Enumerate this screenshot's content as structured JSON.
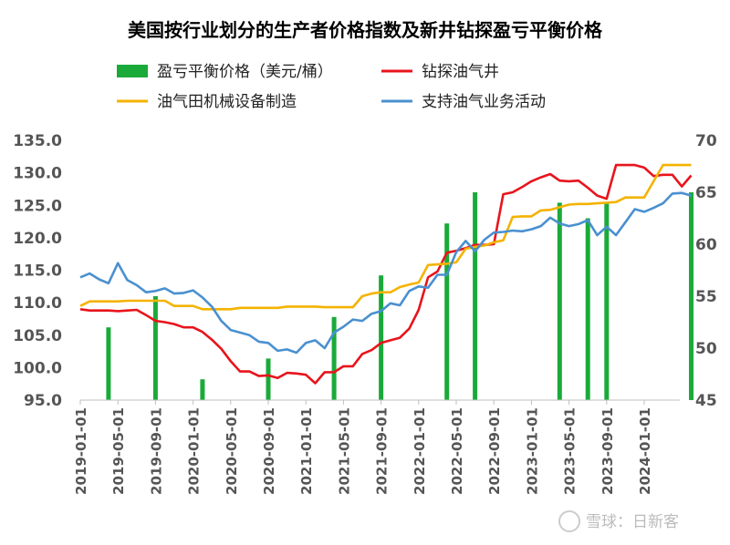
{
  "chart_data": {
    "type": "line",
    "title": "美国按行业划分的生产者价格指数及新井钻探盈亏平衡价格",
    "left_axis": {
      "range": [
        95,
        135
      ],
      "ticks": [
        "95.0",
        "100.0",
        "105.0",
        "110.0",
        "115.0",
        "120.0",
        "125.0",
        "130.0",
        "135.0"
      ]
    },
    "right_axis": {
      "range": [
        45,
        70
      ],
      "ticks": [
        "45",
        "50",
        "55",
        "60",
        "65",
        "70"
      ]
    },
    "x_tick_labels": [
      "2019-01-01",
      "2019-05-01",
      "2019-09-01",
      "2020-01-01",
      "2020-05-01",
      "2020-09-01",
      "2021-01-01",
      "2021-05-01",
      "2021-09-01",
      "2022-01-01",
      "2022-05-01",
      "2022-09-01",
      "2023-01-01",
      "2023-05-01",
      "2023-09-01",
      "2024-01-01"
    ],
    "x_start": "2019-01",
    "grid": false,
    "legend_position": "top",
    "series": [
      {
        "name": "钻探油气井",
        "color": "#e8141c",
        "axis": "left",
        "values": [
          109.0,
          108.8,
          108.8,
          108.8,
          108.7,
          108.8,
          108.9,
          108.1,
          107.2,
          107.0,
          106.7,
          106.2,
          106.2,
          105.5,
          104.3,
          102.9,
          101.0,
          99.4,
          99.4,
          98.7,
          98.8,
          98.4,
          99.2,
          99.1,
          98.9,
          97.6,
          99.3,
          99.3,
          100.2,
          100.2,
          102.1,
          102.7,
          103.8,
          104.2,
          104.6,
          106.0,
          108.9,
          113.9,
          114.8,
          117.7,
          118.0,
          118.4,
          118.9,
          118.9,
          119.0,
          126.7,
          127.0,
          127.8,
          128.7,
          129.3,
          129.8,
          128.8,
          128.7,
          128.8,
          127.7,
          126.5,
          126.0,
          131.2,
          131.2,
          131.2,
          130.8,
          129.5,
          129.7,
          129.7,
          127.9,
          129.6
        ]
      },
      {
        "name": "油气田机械设备制造",
        "color": "#f4b300",
        "axis": "left",
        "values": [
          109.5,
          110.2,
          110.2,
          110.2,
          110.2,
          110.3,
          110.3,
          110.3,
          110.3,
          110.3,
          109.5,
          109.5,
          109.5,
          109.0,
          109.0,
          109.0,
          109.0,
          109.2,
          109.2,
          109.2,
          109.2,
          109.2,
          109.4,
          109.4,
          109.4,
          109.4,
          109.3,
          109.3,
          109.3,
          109.3,
          111.0,
          111.4,
          111.6,
          111.6,
          112.4,
          112.8,
          113.1,
          115.8,
          115.9,
          116.0,
          116.2,
          118.3,
          118.6,
          118.8,
          119.3,
          119.6,
          123.2,
          123.3,
          123.3,
          124.2,
          124.3,
          124.7,
          125.1,
          125.2,
          125.2,
          125.3,
          125.4,
          125.5,
          126.2,
          126.2,
          126.2,
          128.7,
          131.2,
          131.2,
          131.2,
          131.2
        ]
      },
      {
        "name": "支持油气业务活动",
        "color": "#4a90d0",
        "axis": "left",
        "values": [
          113.9,
          114.5,
          113.6,
          113.0,
          116.1,
          113.5,
          112.7,
          111.6,
          111.8,
          112.2,
          111.4,
          111.5,
          111.9,
          110.8,
          109.4,
          107.2,
          105.8,
          105.4,
          105.0,
          104.0,
          103.8,
          102.6,
          102.8,
          102.3,
          103.8,
          104.2,
          103.0,
          105.4,
          106.3,
          107.4,
          107.2,
          108.3,
          108.7,
          109.9,
          109.6,
          111.8,
          112.5,
          112.3,
          114.3,
          114.3,
          117.8,
          119.5,
          117.9,
          119.7,
          120.8,
          120.9,
          121.1,
          121.0,
          121.3,
          121.8,
          123.1,
          122.2,
          121.8,
          122.1,
          122.7,
          120.4,
          121.7,
          120.4,
          122.4,
          124.4,
          124.0,
          124.6,
          125.3,
          126.8,
          126.9,
          126.5
        ]
      },
      {
        "name": "盈亏平衡价格（美元/桶）",
        "color": "#1aaa3a",
        "axis": "right",
        "type": "bar",
        "points": [
          {
            "x": "2019-04",
            "value": 52
          },
          {
            "x": "2019-09",
            "value": 55
          },
          {
            "x": "2020-02",
            "value": 47
          },
          {
            "x": "2020-09",
            "value": 49
          },
          {
            "x": "2021-04",
            "value": 53
          },
          {
            "x": "2021-09",
            "value": 57
          },
          {
            "x": "2022-04",
            "value": 62
          },
          {
            "x": "2022-07",
            "value": 65
          },
          {
            "x": "2023-04",
            "value": 64
          },
          {
            "x": "2023-07",
            "value": 62.5
          },
          {
            "x": "2023-09",
            "value": 64
          },
          {
            "x": "2024-06",
            "value": 65
          }
        ]
      }
    ],
    "legend": [
      {
        "label": "盈亏平衡价格（美元/桶）",
        "color": "#1aaa3a",
        "kind": "box"
      },
      {
        "label": "钻探油气井",
        "color": "#e8141c",
        "kind": "line"
      },
      {
        "label": "油气田机械设备制造",
        "color": "#f4b300",
        "kind": "line"
      },
      {
        "label": "支持油气业务活动",
        "color": "#4a90d0",
        "kind": "line"
      }
    ]
  },
  "watermark": "雪球：日新客"
}
